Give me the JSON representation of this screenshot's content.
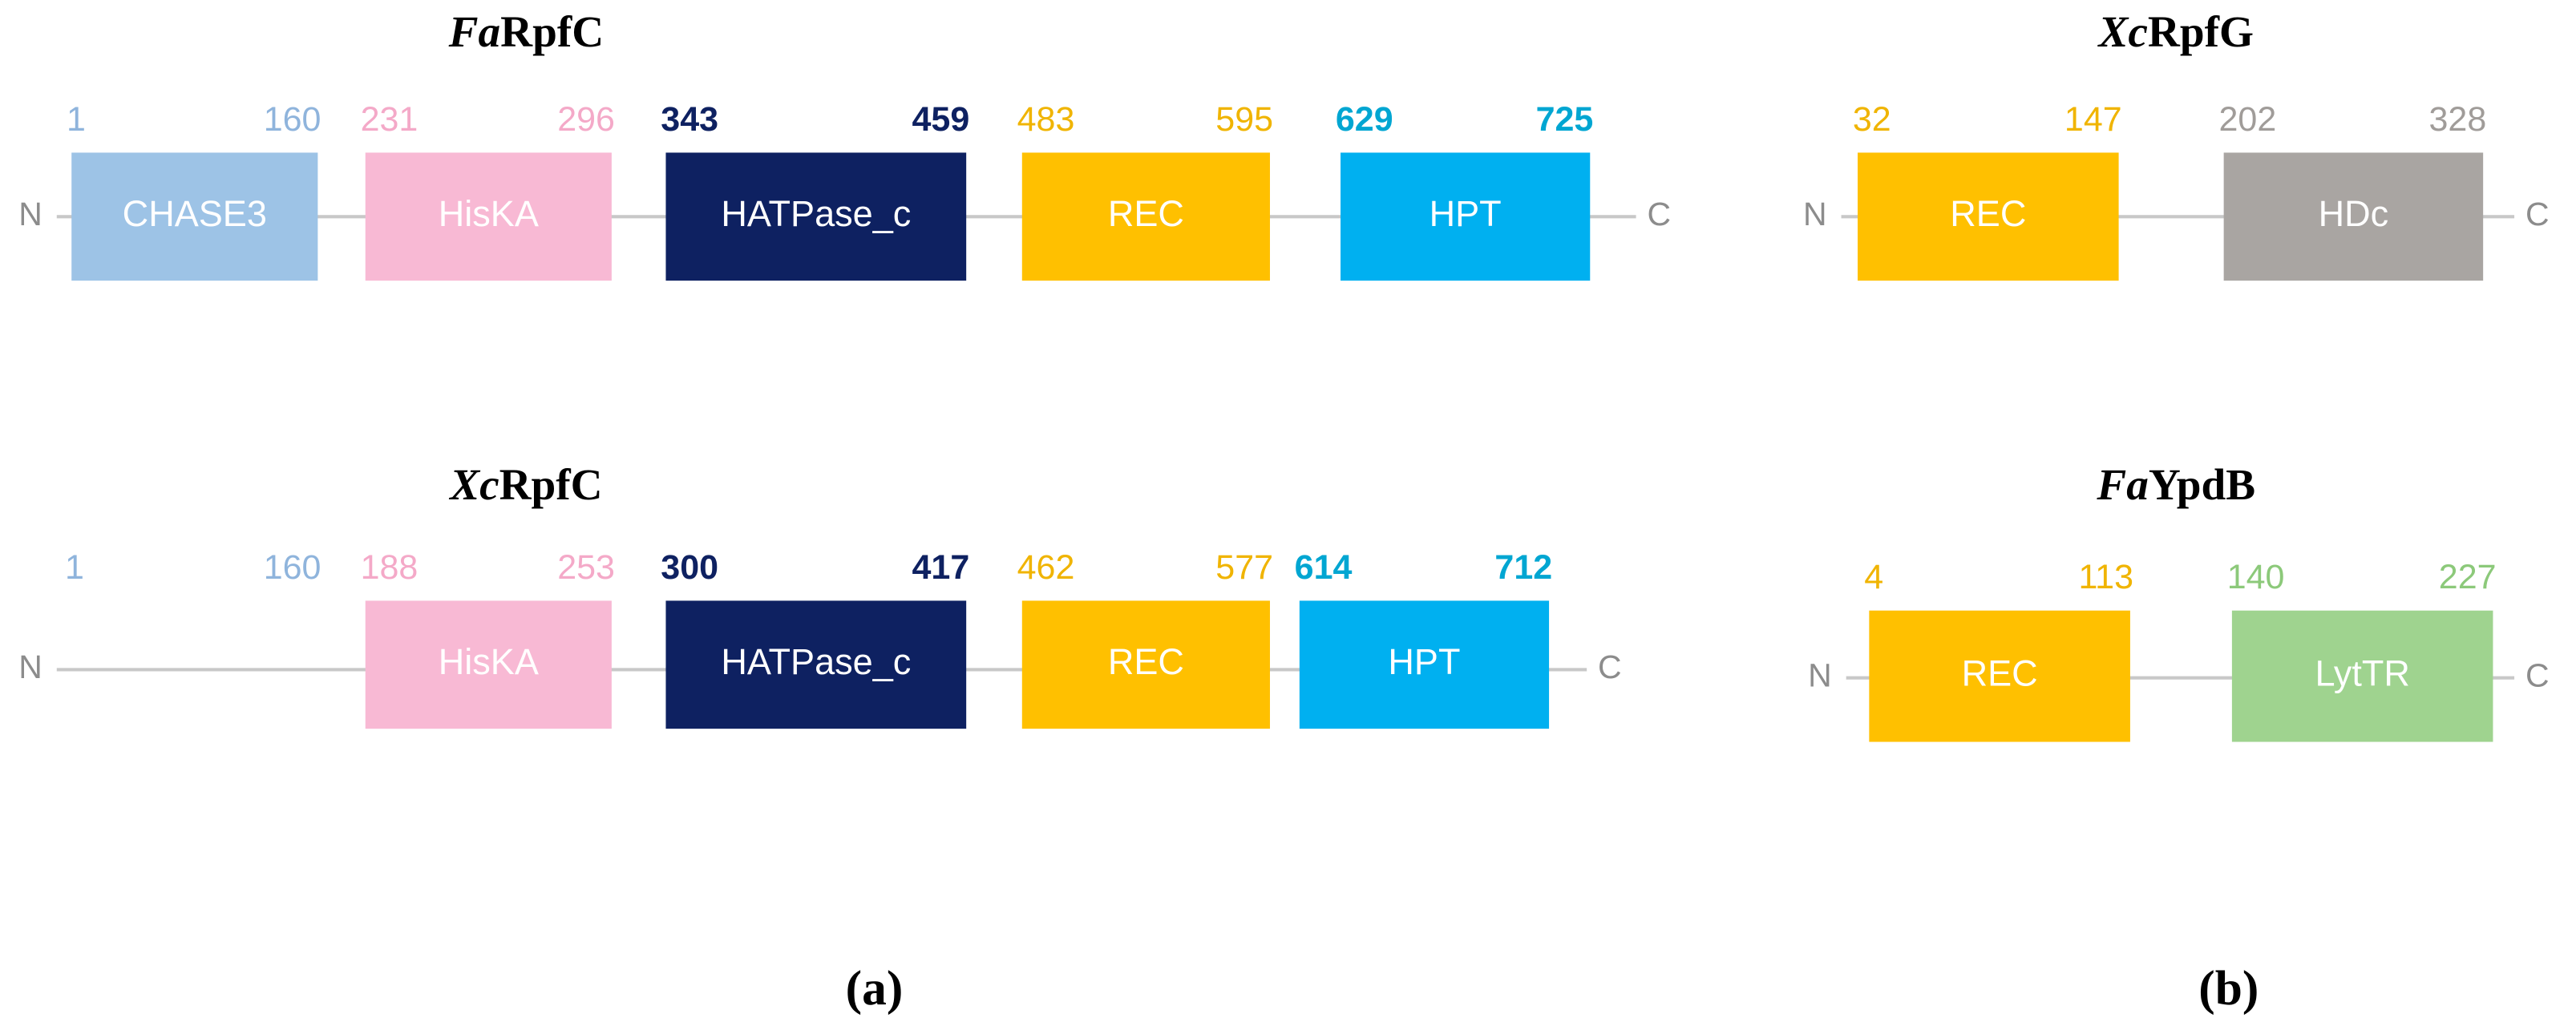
{
  "rows": [
    {
      "title_prefix": "Fa",
      "title_rest": "RpfC",
      "n_label": "N",
      "c_label": "C",
      "domains": [
        {
          "name": "CHASE3",
          "start": "1",
          "end": "160",
          "color": "#9dc3e6",
          "label_color": "#8fb4dc"
        },
        {
          "name": "HisKA",
          "start": "231",
          "end": "296",
          "color": "#f8b9d4",
          "label_color": "#f4a9c8"
        },
        {
          "name": "HATPase_c",
          "start": "343",
          "end": "459",
          "color": "#0e2161",
          "label_color": "#0e2161"
        },
        {
          "name": "REC",
          "start": "483",
          "end": "595",
          "color": "#ffc000",
          "label_color": "#f0b400"
        },
        {
          "name": "HPT",
          "start": "629",
          "end": "725",
          "color": "#00b0f0",
          "label_color": "#00a6d2"
        }
      ]
    },
    {
      "title_prefix": "Xc",
      "title_rest": "RpfC",
      "n_label": "N",
      "c_label": "C",
      "unboxed_range": {
        "start": "1",
        "end": "160",
        "label_color": "#8fb4dc"
      },
      "domains": [
        {
          "name": "HisKA",
          "start": "188",
          "end": "253",
          "color": "#f8b9d4",
          "label_color": "#f4a9c8"
        },
        {
          "name": "HATPase_c",
          "start": "300",
          "end": "417",
          "color": "#0e2161",
          "label_color": "#0e2161"
        },
        {
          "name": "REC",
          "start": "462",
          "end": "577",
          "color": "#ffc000",
          "label_color": "#f0b400"
        },
        {
          "name": "HPT",
          "start": "614",
          "end": "712",
          "color": "#00b0f0",
          "label_color": "#00a6d2"
        }
      ]
    },
    {
      "title_prefix": "Xc",
      "title_rest": "RpfG",
      "n_label": "N",
      "c_label": "C",
      "domains": [
        {
          "name": "REC",
          "start": "32",
          "end": "147",
          "color": "#ffc000",
          "label_color": "#f0b400"
        },
        {
          "name": "HDc",
          "start": "202",
          "end": "328",
          "color": "#a9a5a2",
          "label_color": "#a09c99"
        }
      ]
    },
    {
      "title_prefix": "Fa",
      "title_rest": "YpdB",
      "n_label": "N",
      "c_label": "C",
      "domains": [
        {
          "name": "REC",
          "start": "4",
          "end": "113",
          "color": "#ffc000",
          "label_color": "#f0b400"
        },
        {
          "name": "LytTR",
          "start": "140",
          "end": "227",
          "color": "#9fd38f",
          "label_color": "#8cc97a"
        }
      ]
    }
  ],
  "panel_labels": [
    "(a)",
    "(b)"
  ]
}
